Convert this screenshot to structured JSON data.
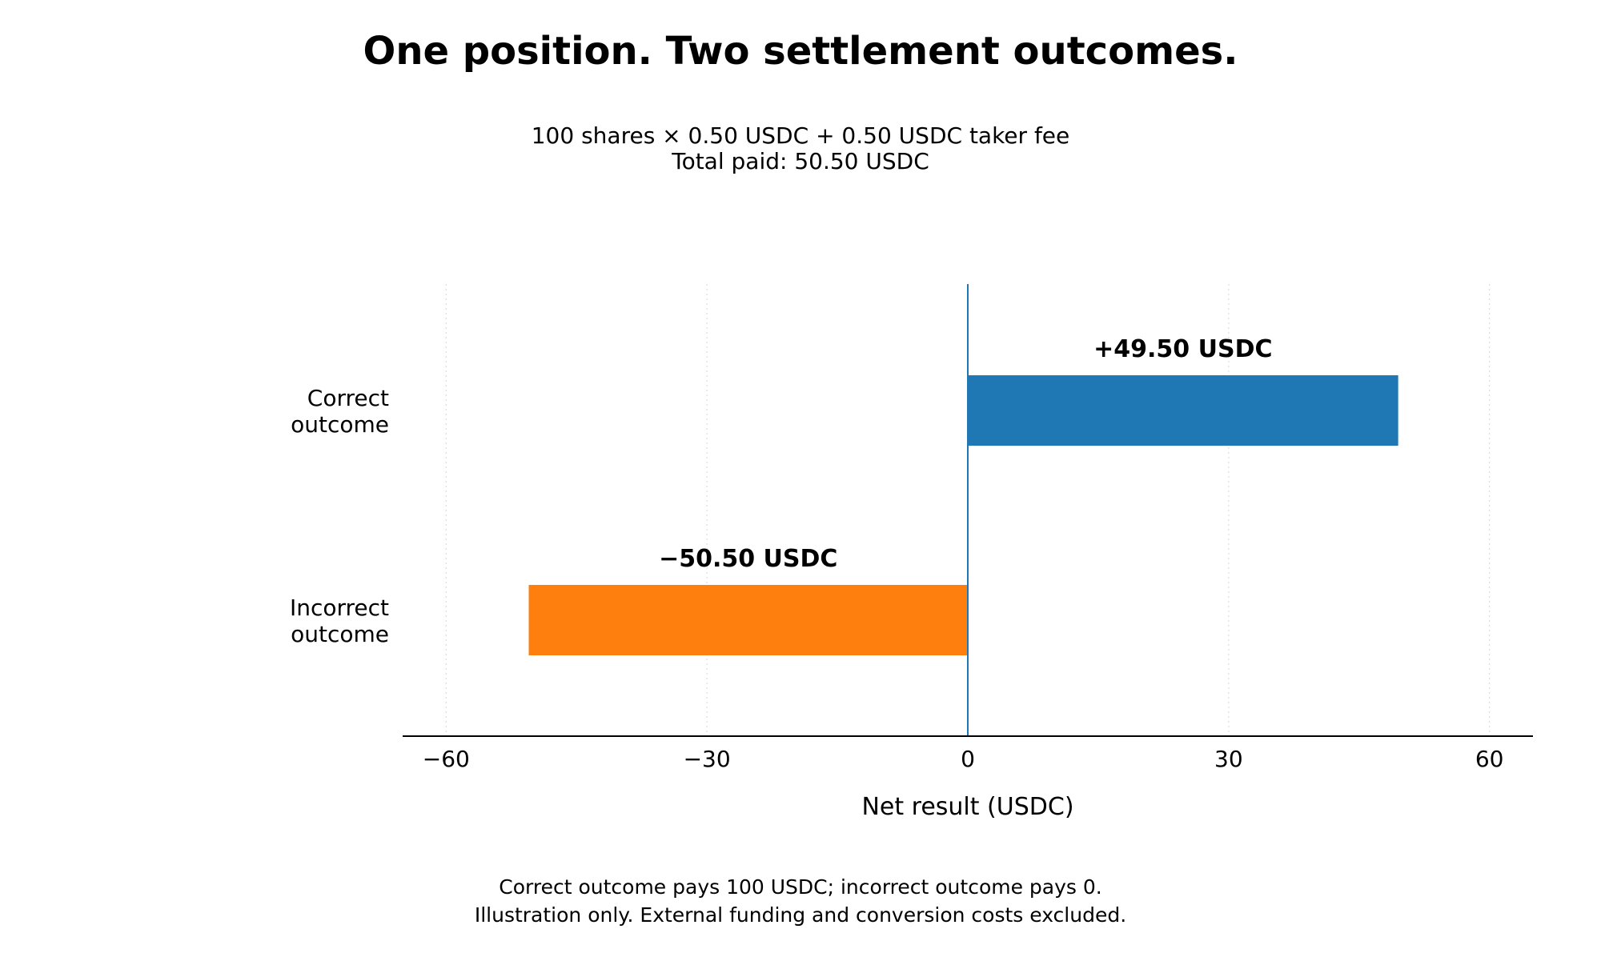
{
  "chart_data": {
    "type": "bar",
    "orientation": "horizontal",
    "title": "One position. Two settlement outcomes.",
    "subtitle": [
      "100 shares × 0.50 USDC + 0.50 USDC taker fee",
      "Total paid: 50.50 USDC"
    ],
    "categories": [
      "Correct\noutcome",
      "Incorrect\noutcome"
    ],
    "values": [
      49.5,
      -50.5
    ],
    "data_labels": [
      "+49.50 USDC",
      "−50.50 USDC"
    ],
    "colors": [
      "#1f77b4",
      "#ff7f0e"
    ],
    "xlabel": "Net result (USDC)",
    "ylabel": "",
    "xlim": [
      -65,
      65
    ],
    "xticks": [
      -60,
      -30,
      0,
      30,
      60
    ],
    "xtick_labels": [
      "−60",
      "−30",
      "0",
      "30",
      "60"
    ],
    "grid": "x-dotted",
    "zero_line_color": "#1f77b4",
    "footnote": [
      "Correct outcome pays 100 USDC; incorrect outcome pays 0.",
      "Illustration only. External funding and conversion costs excluded."
    ]
  }
}
